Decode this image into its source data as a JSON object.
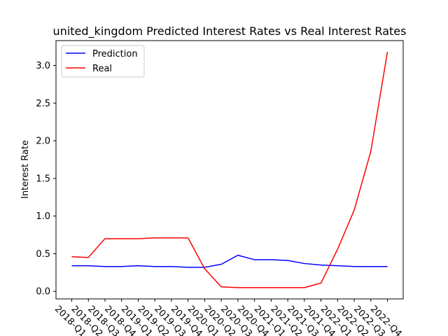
{
  "chart_data": {
    "type": "line",
    "title": "united_kingdom Predicted Interest Rates vs Real Interest Rates",
    "xlabel": "",
    "ylabel": "Interest Rate",
    "categories": [
      "2018-Q1",
      "2018-Q2",
      "2018-Q3",
      "2018-Q4",
      "2019-Q1",
      "2019-Q2",
      "2019-Q3",
      "2019-Q4",
      "2020-Q1",
      "2020-Q2",
      "2020-Q3",
      "2020-Q4",
      "2021-Q1",
      "2021-Q2",
      "2021-Q3",
      "2021-Q4",
      "2022-Q1",
      "2022-Q2",
      "2022-Q3",
      "2022-Q4"
    ],
    "ylim": [
      -0.1,
      3.33
    ],
    "yticks": [
      "0.0",
      "0.5",
      "1.0",
      "1.5",
      "2.0",
      "2.5",
      "3.0"
    ],
    "ytick_values": [
      0.0,
      0.5,
      1.0,
      1.5,
      2.0,
      2.5,
      3.0
    ],
    "series": [
      {
        "name": "Prediction",
        "color": "#0000ff",
        "values": [
          0.34,
          0.34,
          0.33,
          0.33,
          0.34,
          0.33,
          0.33,
          0.32,
          0.32,
          0.36,
          0.48,
          0.42,
          0.42,
          0.41,
          0.37,
          0.35,
          0.34,
          0.33,
          0.33,
          0.33
        ]
      },
      {
        "name": "Real",
        "color": "#ff0000",
        "values": [
          0.46,
          0.45,
          0.7,
          0.7,
          0.7,
          0.71,
          0.71,
          0.71,
          0.3,
          0.06,
          0.05,
          0.05,
          0.05,
          0.05,
          0.05,
          0.11,
          0.56,
          1.08,
          1.86,
          3.18
        ]
      }
    ],
    "legend": {
      "placement": "top-left"
    },
    "grid": false
  }
}
